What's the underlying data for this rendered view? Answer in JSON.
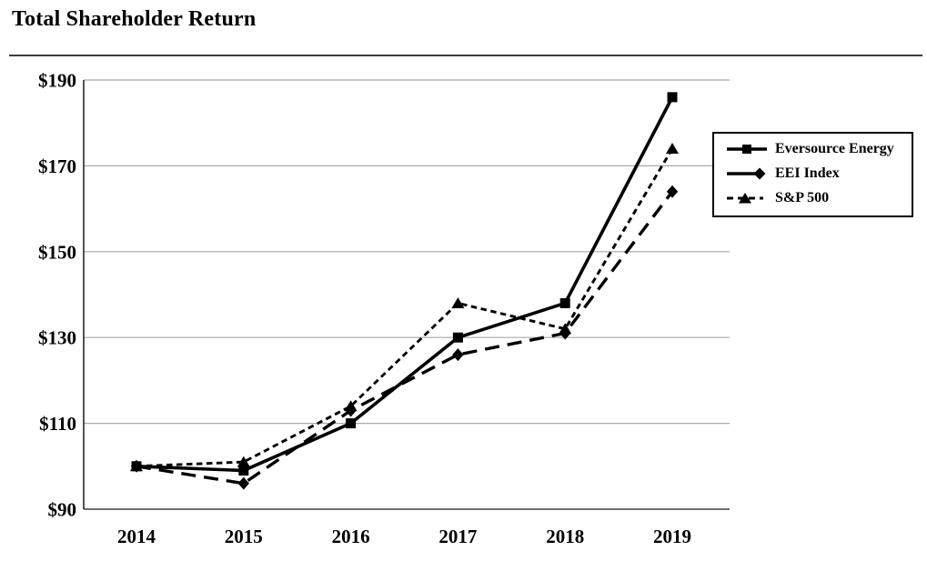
{
  "page": {
    "title": "Total Shareholder Return"
  },
  "chart_data": {
    "type": "line",
    "title": "Total Shareholder Return",
    "categories": [
      "2014",
      "2015",
      "2016",
      "2017",
      "2018",
      "2019"
    ],
    "series": [
      {
        "name": "Eversource Energy",
        "values": [
          100,
          99,
          110,
          130,
          138,
          186
        ],
        "line": "solid",
        "marker": "square"
      },
      {
        "name": "EEI Index",
        "values": [
          100,
          96,
          113,
          126,
          131,
          164
        ],
        "line": "long-dash",
        "marker": "diamond"
      },
      {
        "name": "S&P 500",
        "values": [
          100,
          101,
          114,
          138,
          132,
          174
        ],
        "line": "short-dash",
        "marker": "triangle"
      }
    ],
    "xlabel": "",
    "ylabel": "",
    "y_ticks": [
      "$90",
      "$110",
      "$130",
      "$150",
      "$170",
      "$190"
    ],
    "y_tick_values": [
      90,
      110,
      130,
      150,
      170,
      190
    ],
    "ylim": [
      90,
      190
    ],
    "grid": true,
    "legend_position": "right",
    "colors": {
      "series": "#000000",
      "gridline": "#a8a8a8",
      "axis": "#1a1a1a",
      "title_rule": "#3c3c3c"
    }
  }
}
